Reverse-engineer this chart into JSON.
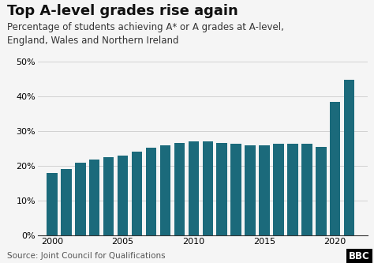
{
  "title": "Top A-level grades rise again",
  "subtitle": "Percentage of students achieving A* or A grades at A-level,\nEngland, Wales and Northern Ireland",
  "source": "Source: Joint Council for Qualifications",
  "years": [
    2000,
    2001,
    2002,
    2003,
    2004,
    2005,
    2006,
    2007,
    2008,
    2009,
    2010,
    2011,
    2012,
    2013,
    2014,
    2015,
    2016,
    2017,
    2018,
    2019,
    2020,
    2021
  ],
  "values": [
    18.0,
    19.0,
    21.0,
    21.8,
    22.4,
    23.0,
    24.1,
    25.3,
    25.9,
    26.7,
    27.0,
    27.0,
    26.6,
    26.3,
    26.0,
    25.9,
    26.3,
    26.3,
    26.4,
    25.5,
    38.5,
    44.8
  ],
  "bar_color": "#1b6a7b",
  "background_color": "#f5f5f5",
  "ylim": [
    0,
    50
  ],
  "yticks": [
    0,
    10,
    20,
    30,
    40,
    50
  ],
  "xtick_positions": [
    2000,
    2005,
    2010,
    2015,
    2020
  ],
  "grid_color": "#cccccc",
  "title_fontsize": 13,
  "subtitle_fontsize": 8.5,
  "source_fontsize": 7.5,
  "tick_fontsize": 8
}
